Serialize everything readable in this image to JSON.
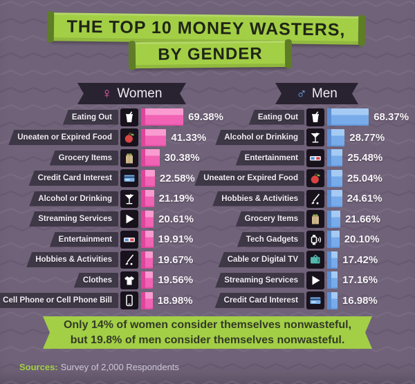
{
  "title": {
    "line1": "THE TOP 10 MONEY WASTERS,",
    "line2": "BY GENDER"
  },
  "theme": {
    "bg_purple": "#706278",
    "banner_green": "#a3cf46",
    "women_accent": "#ef5fb1",
    "men_accent": "#6fa8e8",
    "ribbon_dark": "#3e3746",
    "women_bar": "#f163b4",
    "men_bar": "#78abea"
  },
  "columns": {
    "women": {
      "header": "Women",
      "symbol": "♀",
      "rows": [
        {
          "label": "Eating Out",
          "icon": "drink-cup-icon",
          "value": "69.38%",
          "pct": 69.38
        },
        {
          "label": "Uneaten or Expired Food",
          "icon": "apple-icon",
          "value": "41.33%",
          "pct": 41.33
        },
        {
          "label": "Grocery Items",
          "icon": "grocery-bag-icon",
          "value": "30.38%",
          "pct": 30.38
        },
        {
          "label": "Credit Card Interest",
          "icon": "credit-card-icon",
          "value": "22.58%",
          "pct": 22.58
        },
        {
          "label": "Alcohol or Drinking",
          "icon": "martini-icon",
          "value": "21.19%",
          "pct": 21.19
        },
        {
          "label": "Streaming Services",
          "icon": "play-icon",
          "value": "20.61%",
          "pct": 20.61
        },
        {
          "label": "Entertainment",
          "icon": "3d-glasses-icon",
          "value": "19.91%",
          "pct": 19.91
        },
        {
          "label": "Hobbies & Activities",
          "icon": "golf-club-icon",
          "value": "19.67%",
          "pct": 19.67
        },
        {
          "label": "Clothes",
          "icon": "t-shirt-icon",
          "value": "19.56%",
          "pct": 19.56
        },
        {
          "label": "Cell Phone or Cell Phone Bill",
          "icon": "cell-phone-icon",
          "value": "18.98%",
          "pct": 18.98
        }
      ]
    },
    "men": {
      "header": "Men",
      "symbol": "♂",
      "rows": [
        {
          "label": "Eating Out",
          "icon": "drink-cup-icon",
          "value": "68.37%",
          "pct": 68.37
        },
        {
          "label": "Alcohol or Drinking",
          "icon": "martini-icon",
          "value": "28.77%",
          "pct": 28.77
        },
        {
          "label": "Entertainment",
          "icon": "3d-glasses-icon",
          "value": "25.48%",
          "pct": 25.48
        },
        {
          "label": "Uneaten or Expired Food",
          "icon": "apple-icon",
          "value": "25.04%",
          "pct": 25.04
        },
        {
          "label": "Hobbies & Activities",
          "icon": "golf-club-icon",
          "value": "24.61%",
          "pct": 24.61
        },
        {
          "label": "Grocery Items",
          "icon": "grocery-bag-icon",
          "value": "21.66%",
          "pct": 21.66
        },
        {
          "label": "Tech Gadgets",
          "icon": "tech-gadget-icon",
          "value": "20.10%",
          "pct": 20.1
        },
        {
          "label": "Cable or Digital TV",
          "icon": "tv-icon",
          "value": "17.42%",
          "pct": 17.42
        },
        {
          "label": "Streaming Services",
          "icon": "play-icon",
          "value": "17.16%",
          "pct": 17.16
        },
        {
          "label": "Credit Card Interest",
          "icon": "credit-card-icon",
          "value": "16.98%",
          "pct": 16.98
        }
      ]
    }
  },
  "footer": {
    "note_line1": "Only 14% of women consider themselves nonwasteful,",
    "note_line2": "but 19.8% of men consider themselves nonwasteful.",
    "sources_label": "Sources:",
    "sources_text": "Survey of 2,000 Respondents"
  },
  "chart_data": [
    {
      "type": "bar",
      "orientation": "horizontal",
      "title": "Women",
      "unit": "%",
      "bar_color": "#f163b4",
      "categories": [
        "Eating Out",
        "Uneaten or Expired Food",
        "Grocery Items",
        "Credit Card Interest",
        "Alcohol or Drinking",
        "Streaming Services",
        "Entertainment",
        "Hobbies & Activities",
        "Clothes",
        "Cell Phone or Cell Phone Bill"
      ],
      "values": [
        69.38,
        41.33,
        30.38,
        22.58,
        21.19,
        20.61,
        19.91,
        19.67,
        19.56,
        18.98
      ],
      "xlim": [
        0,
        70
      ],
      "data_labels": true,
      "grid": false
    },
    {
      "type": "bar",
      "orientation": "horizontal",
      "title": "Men",
      "unit": "%",
      "bar_color": "#78abea",
      "categories": [
        "Eating Out",
        "Alcohol or Drinking",
        "Entertainment",
        "Uneaten or Expired Food",
        "Hobbies & Activities",
        "Grocery Items",
        "Tech Gadgets",
        "Cable or Digital TV",
        "Streaming Services",
        "Credit Card Interest"
      ],
      "values": [
        68.37,
        28.77,
        25.48,
        25.04,
        24.61,
        21.66,
        20.1,
        17.42,
        17.16,
        16.98
      ],
      "xlim": [
        0,
        70
      ],
      "data_labels": true,
      "grid": false
    }
  ]
}
